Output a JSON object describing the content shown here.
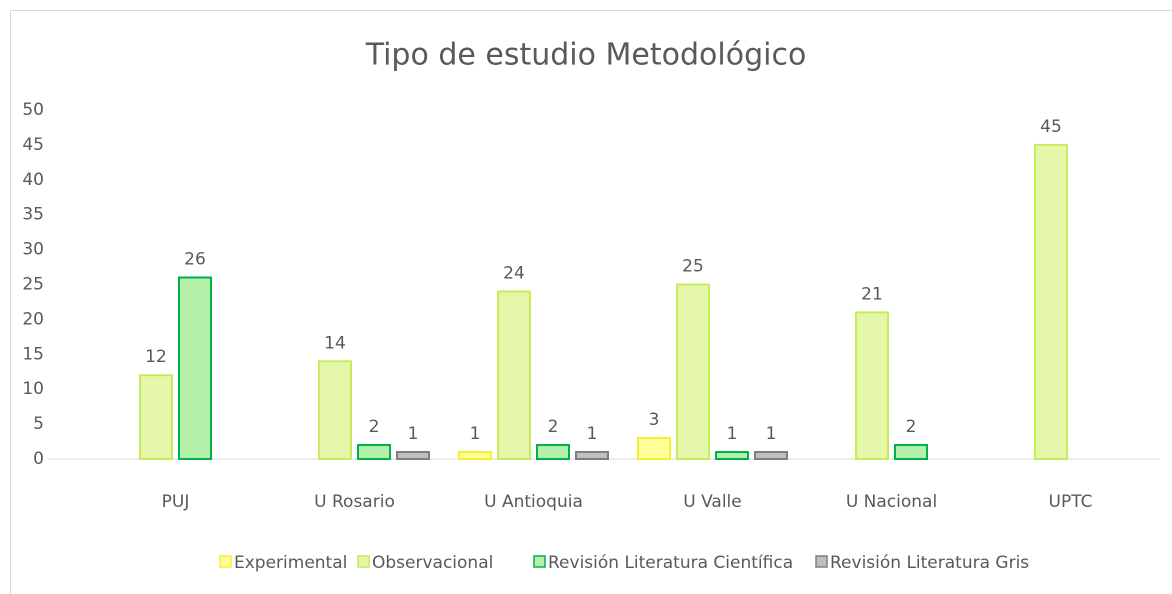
{
  "chart_data": {
    "type": "bar",
    "title": "Tipo de estudio Metodológico",
    "categories": [
      "PUJ",
      "U Rosario",
      "U Antioquia",
      "U Valle",
      "U Nacional",
      "UPTC"
    ],
    "series": [
      {
        "name": "Experimental",
        "color": "#ffff99",
        "edgecolor": "#f2f22e",
        "values": [
          null,
          null,
          1,
          3,
          null,
          null
        ]
      },
      {
        "name": "Observacional",
        "color": "#e4f7a8",
        "edgecolor": "#c6ec5c",
        "values": [
          12,
          14,
          24,
          25,
          21,
          45
        ]
      },
      {
        "name": "Revisión Literatura Científica",
        "color": "#b5f0a8",
        "edgecolor": "#00b050",
        "values": [
          26,
          2,
          2,
          1,
          2,
          null
        ]
      },
      {
        "name": "Revisión Literatura Gris",
        "color": "#bfbfbf",
        "edgecolor": "#7f7f7f",
        "values": [
          null,
          1,
          1,
          1,
          null,
          null
        ]
      }
    ],
    "ylim": [
      0,
      50
    ],
    "yticks": [
      0,
      5,
      10,
      15,
      20,
      25,
      30,
      35,
      40,
      45,
      50
    ],
    "grid": false,
    "legend": "bottom",
    "data_labels": true
  }
}
